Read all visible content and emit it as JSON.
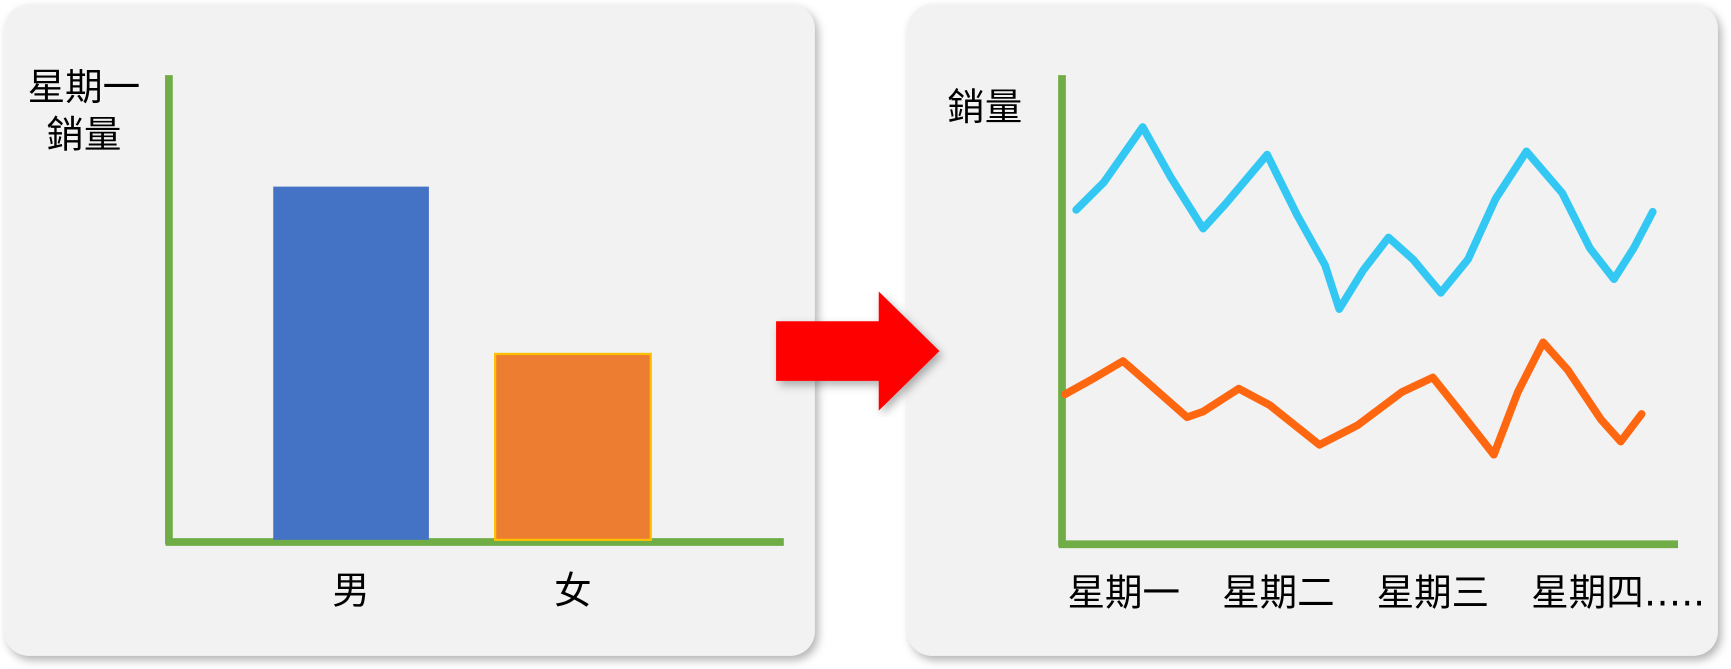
{
  "chart_data": [
    {
      "type": "bar",
      "ylabel": [
        "星期一",
        "銷量"
      ],
      "categories": [
        "男",
        "女"
      ],
      "values": [
        76,
        40
      ],
      "colors": [
        "#4472c4",
        "#ed7d31"
      ],
      "ylim": [
        0,
        100
      ]
    },
    {
      "type": "line",
      "ylabel": "銷量",
      "categories": [
        "星期一",
        "星期二",
        "星期三",
        "星期四….."
      ],
      "xlim": [
        0,
        100
      ],
      "ylim": [
        0,
        100
      ],
      "series": [
        {
          "color": "#33c8f4",
          "x": [
            2.3,
            6.8,
            13.1,
            17.6,
            22.9,
            26.5,
            33.3,
            38.2,
            42.7,
            45,
            48.9,
            53,
            57,
            61.5,
            65.9,
            70.4,
            75.4,
            81.2,
            85.7,
            89.6,
            92.8,
            95.9
          ],
          "values": [
            71.2,
            77.1,
            88.9,
            78.3,
            67.2,
            72.4,
            83,
            70,
            59.4,
            50,
            58.3,
            65.3,
            60.6,
            53.5,
            60.6,
            73.6,
            83.7,
            74.8,
            63,
            56.4,
            63,
            70.8
          ]
        },
        {
          "color": "#ff6610",
          "x": [
            0.5,
            5,
            9.9,
            14,
            20.3,
            22.9,
            28.7,
            33.7,
            41.8,
            48,
            55.2,
            60.2,
            64.2,
            70.1,
            74,
            78.1,
            82.1,
            87.5,
            90.7,
            94.1
          ],
          "values": [
            31.8,
            35.1,
            38.9,
            34.2,
            26.9,
            28.1,
            33,
            29.5,
            21,
            25.2,
            32.3,
            35.4,
            28.8,
            18.9,
            32.3,
            42.9,
            37,
            26.4,
            21.7,
            27.6
          ]
        }
      ]
    }
  ]
}
